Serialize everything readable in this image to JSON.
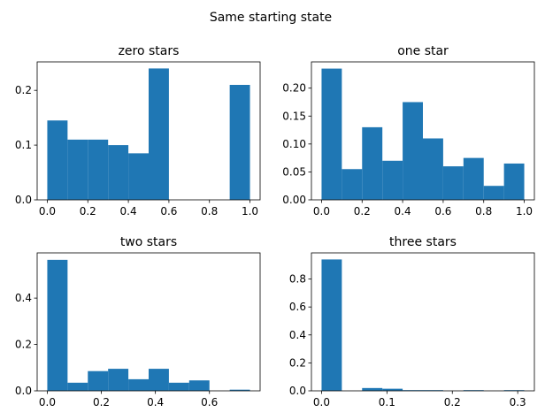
{
  "figure": {
    "title": "Same starting state",
    "bar_color": "#1f77b4"
  },
  "chart_data": [
    {
      "type": "bar",
      "title": "zero stars",
      "xlim": [
        -0.05,
        1.05
      ],
      "ylim": [
        0,
        0.252
      ],
      "xticks": [
        0.0,
        0.2,
        0.4,
        0.6,
        0.8,
        1.0
      ],
      "xtick_labels": [
        "0.0",
        "0.2",
        "0.4",
        "0.6",
        "0.8",
        "1.0"
      ],
      "yticks": [
        0.0,
        0.1,
        0.2
      ],
      "ytick_labels": [
        "0.0",
        "0.1",
        "0.2"
      ],
      "bin_edges": [
        0.0,
        0.1,
        0.2,
        0.3,
        0.4,
        0.5,
        0.6,
        0.7,
        0.8,
        0.9,
        1.0
      ],
      "values": [
        0.145,
        0.11,
        0.11,
        0.1,
        0.085,
        0.24,
        0.0,
        0.0,
        0.0,
        0.21
      ]
    },
    {
      "type": "bar",
      "title": "one star",
      "xlim": [
        -0.05,
        1.05
      ],
      "ylim": [
        0,
        0.247
      ],
      "xticks": [
        0.0,
        0.2,
        0.4,
        0.6,
        0.8,
        1.0
      ],
      "xtick_labels": [
        "0.0",
        "0.2",
        "0.4",
        "0.6",
        "0.8",
        "1.0"
      ],
      "yticks": [
        0.0,
        0.05,
        0.1,
        0.15,
        0.2
      ],
      "ytick_labels": [
        "0.00",
        "0.05",
        "0.10",
        "0.15",
        "0.20"
      ],
      "bin_edges": [
        0.0,
        0.1,
        0.2,
        0.3,
        0.4,
        0.5,
        0.6,
        0.7,
        0.8,
        0.9,
        1.0
      ],
      "values": [
        0.235,
        0.055,
        0.13,
        0.07,
        0.175,
        0.11,
        0.06,
        0.075,
        0.025,
        0.065
      ]
    },
    {
      "type": "bar",
      "title": "two stars",
      "xlim": [
        -0.0375,
        0.7875
      ],
      "ylim": [
        0,
        0.595
      ],
      "xticks": [
        0.0,
        0.2,
        0.4,
        0.6
      ],
      "xtick_labels": [
        "0.0",
        "0.2",
        "0.4",
        "0.6"
      ],
      "yticks": [
        0.0,
        0.2,
        0.4
      ],
      "ytick_labels": [
        "0.0",
        "0.2",
        "0.4"
      ],
      "bin_edges": [
        0.0,
        0.075,
        0.15,
        0.225,
        0.3,
        0.375,
        0.45,
        0.525,
        0.6,
        0.675,
        0.75
      ],
      "values": [
        0.565,
        0.035,
        0.085,
        0.095,
        0.05,
        0.095,
        0.035,
        0.045,
        0.0,
        0.005
      ]
    },
    {
      "type": "bar",
      "title": "three stars",
      "xlim": [
        -0.0155,
        0.3255
      ],
      "ylim": [
        0,
        0.987
      ],
      "xticks": [
        0.0,
        0.1,
        0.2,
        0.3
      ],
      "xtick_labels": [
        "0.0",
        "0.1",
        "0.2",
        "0.3"
      ],
      "yticks": [
        0.0,
        0.2,
        0.4,
        0.6,
        0.8
      ],
      "ytick_labels": [
        "0.0",
        "0.2",
        "0.4",
        "0.6",
        "0.8"
      ],
      "bin_edges": [
        0.0,
        0.031,
        0.062,
        0.093,
        0.124,
        0.155,
        0.186,
        0.217,
        0.248,
        0.279,
        0.31
      ],
      "values": [
        0.94,
        0.0,
        0.02,
        0.015,
        0.005,
        0.005,
        0.0,
        0.005,
        0.0,
        0.005
      ]
    }
  ]
}
